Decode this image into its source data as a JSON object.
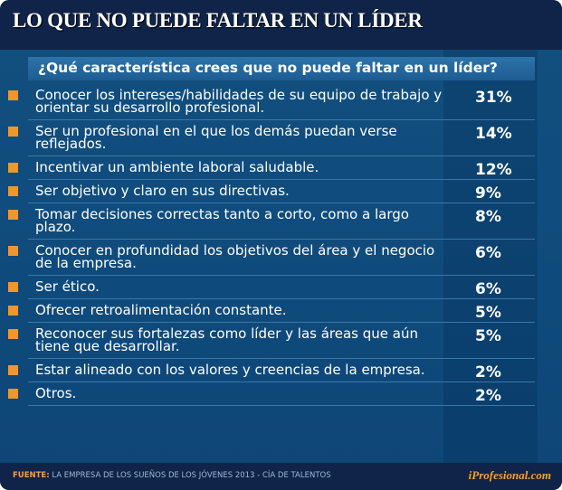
{
  "title": "LO QUE NO PUEDE FALTAR EN UN LÍDER",
  "question": "¿Qué característica crees que no puede faltar en un líder?",
  "colors": {
    "bullet": "#f0962e",
    "header": "#0f2448",
    "body": "#0f4a7c"
  },
  "chart_data": {
    "type": "table",
    "title": "¿Qué característica crees que no puede faltar en un líder?",
    "rows": [
      {
        "label": "Conocer los intereses/habilidades de su equipo de trabajo y orientar su desarrollo profesional.",
        "value": "31%"
      },
      {
        "label": "Ser un profesional en el que los demás puedan verse reflejados.",
        "value": "14%"
      },
      {
        "label": "Incentivar un ambiente laboral saludable.",
        "value": "12%"
      },
      {
        "label": "Ser objetivo y claro en sus directivas.",
        "value": "9%"
      },
      {
        "label": "Tomar decisiones correctas tanto a corto, como a largo plazo.",
        "value": "8%"
      },
      {
        "label": "Conocer en profundidad los objetivos del área y el negocio de la empresa.",
        "value": "6%"
      },
      {
        "label": "Ser ético.",
        "value": "6%"
      },
      {
        "label": "Ofrecer retroalimentación constante.",
        "value": "5%"
      },
      {
        "label": "Reconocer sus fortalezas como líder y las áreas que aún tiene que desarrollar.",
        "value": "5%"
      },
      {
        "label": "Estar alineado con los valores y creencias de la empresa.",
        "value": "2%"
      },
      {
        "label": "Otros.",
        "value": "2%"
      }
    ]
  },
  "footer": {
    "source_label": "FUENTE:",
    "source_text": "LA EMPRESA DE LOS SUEÑOS DE LOS JÓVENES 2013 - CÍA DE TALENTOS",
    "brand": "iProfesional.com"
  }
}
